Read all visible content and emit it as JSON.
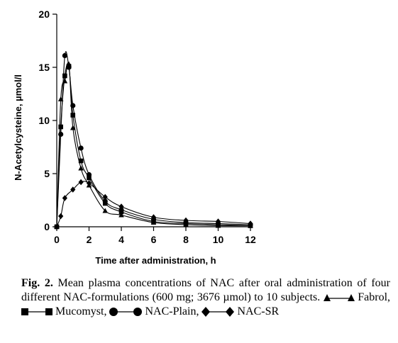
{
  "chart_data": {
    "type": "line",
    "xlabel": "Time after administration, h",
    "ylabel": "N-Acetylcysteine, µmol/l",
    "xlim": [
      0,
      12
    ],
    "ylim": [
      0,
      20
    ],
    "xticks": [
      0,
      2,
      4,
      6,
      8,
      10,
      12
    ],
    "yticks": [
      0,
      5,
      10,
      15,
      20
    ],
    "grid": false,
    "series": [
      {
        "name": "Fabrol",
        "marker": "triangle",
        "x": [
          0,
          0.25,
          0.5,
          0.75,
          1,
          1.5,
          2,
          3,
          4,
          6,
          8,
          10,
          12
        ],
        "y": [
          0,
          12.0,
          13.7,
          15.3,
          9.3,
          5.5,
          3.9,
          1.5,
          1.1,
          0.4,
          0.2,
          0.1,
          0.1
        ]
      },
      {
        "name": "Mucomyst",
        "marker": "square",
        "x": [
          0,
          0.25,
          0.5,
          0.75,
          1,
          1.5,
          2,
          3,
          4,
          6,
          8,
          10,
          12
        ],
        "y": [
          0,
          9.4,
          14.2,
          15.1,
          10.5,
          6.2,
          4.6,
          2.2,
          1.4,
          0.5,
          0.3,
          0.2,
          0.1
        ]
      },
      {
        "name": "NAC-Plain",
        "marker": "circle",
        "x": [
          0,
          0.25,
          0.5,
          0.75,
          1,
          1.5,
          2,
          3,
          4,
          6,
          8,
          10,
          12
        ],
        "y": [
          0,
          8.7,
          16.1,
          15.0,
          11.4,
          7.4,
          4.9,
          2.4,
          1.6,
          0.7,
          0.4,
          0.3,
          0.2
        ]
      },
      {
        "name": "NAC-SR",
        "marker": "diamond",
        "x": [
          0,
          0.25,
          0.5,
          1,
          1.5,
          2,
          3,
          4,
          6,
          8,
          10,
          12
        ],
        "y": [
          0,
          1.0,
          2.7,
          3.5,
          4.2,
          4.1,
          2.8,
          1.9,
          0.9,
          0.6,
          0.5,
          0.3
        ]
      }
    ]
  },
  "caption": {
    "figure_label": "Fig. 2.",
    "text": "Mean plasma concentrations of NAC after oral administration of four different NAC-formulations (600 mg; 3676 µmol) to 10 subjects.",
    "key_text_1": "Fabrol,",
    "key_text_2": "Mucomyst,",
    "key_text_3": "NAC-Plain,",
    "key_text_4": "NAC-SR"
  }
}
